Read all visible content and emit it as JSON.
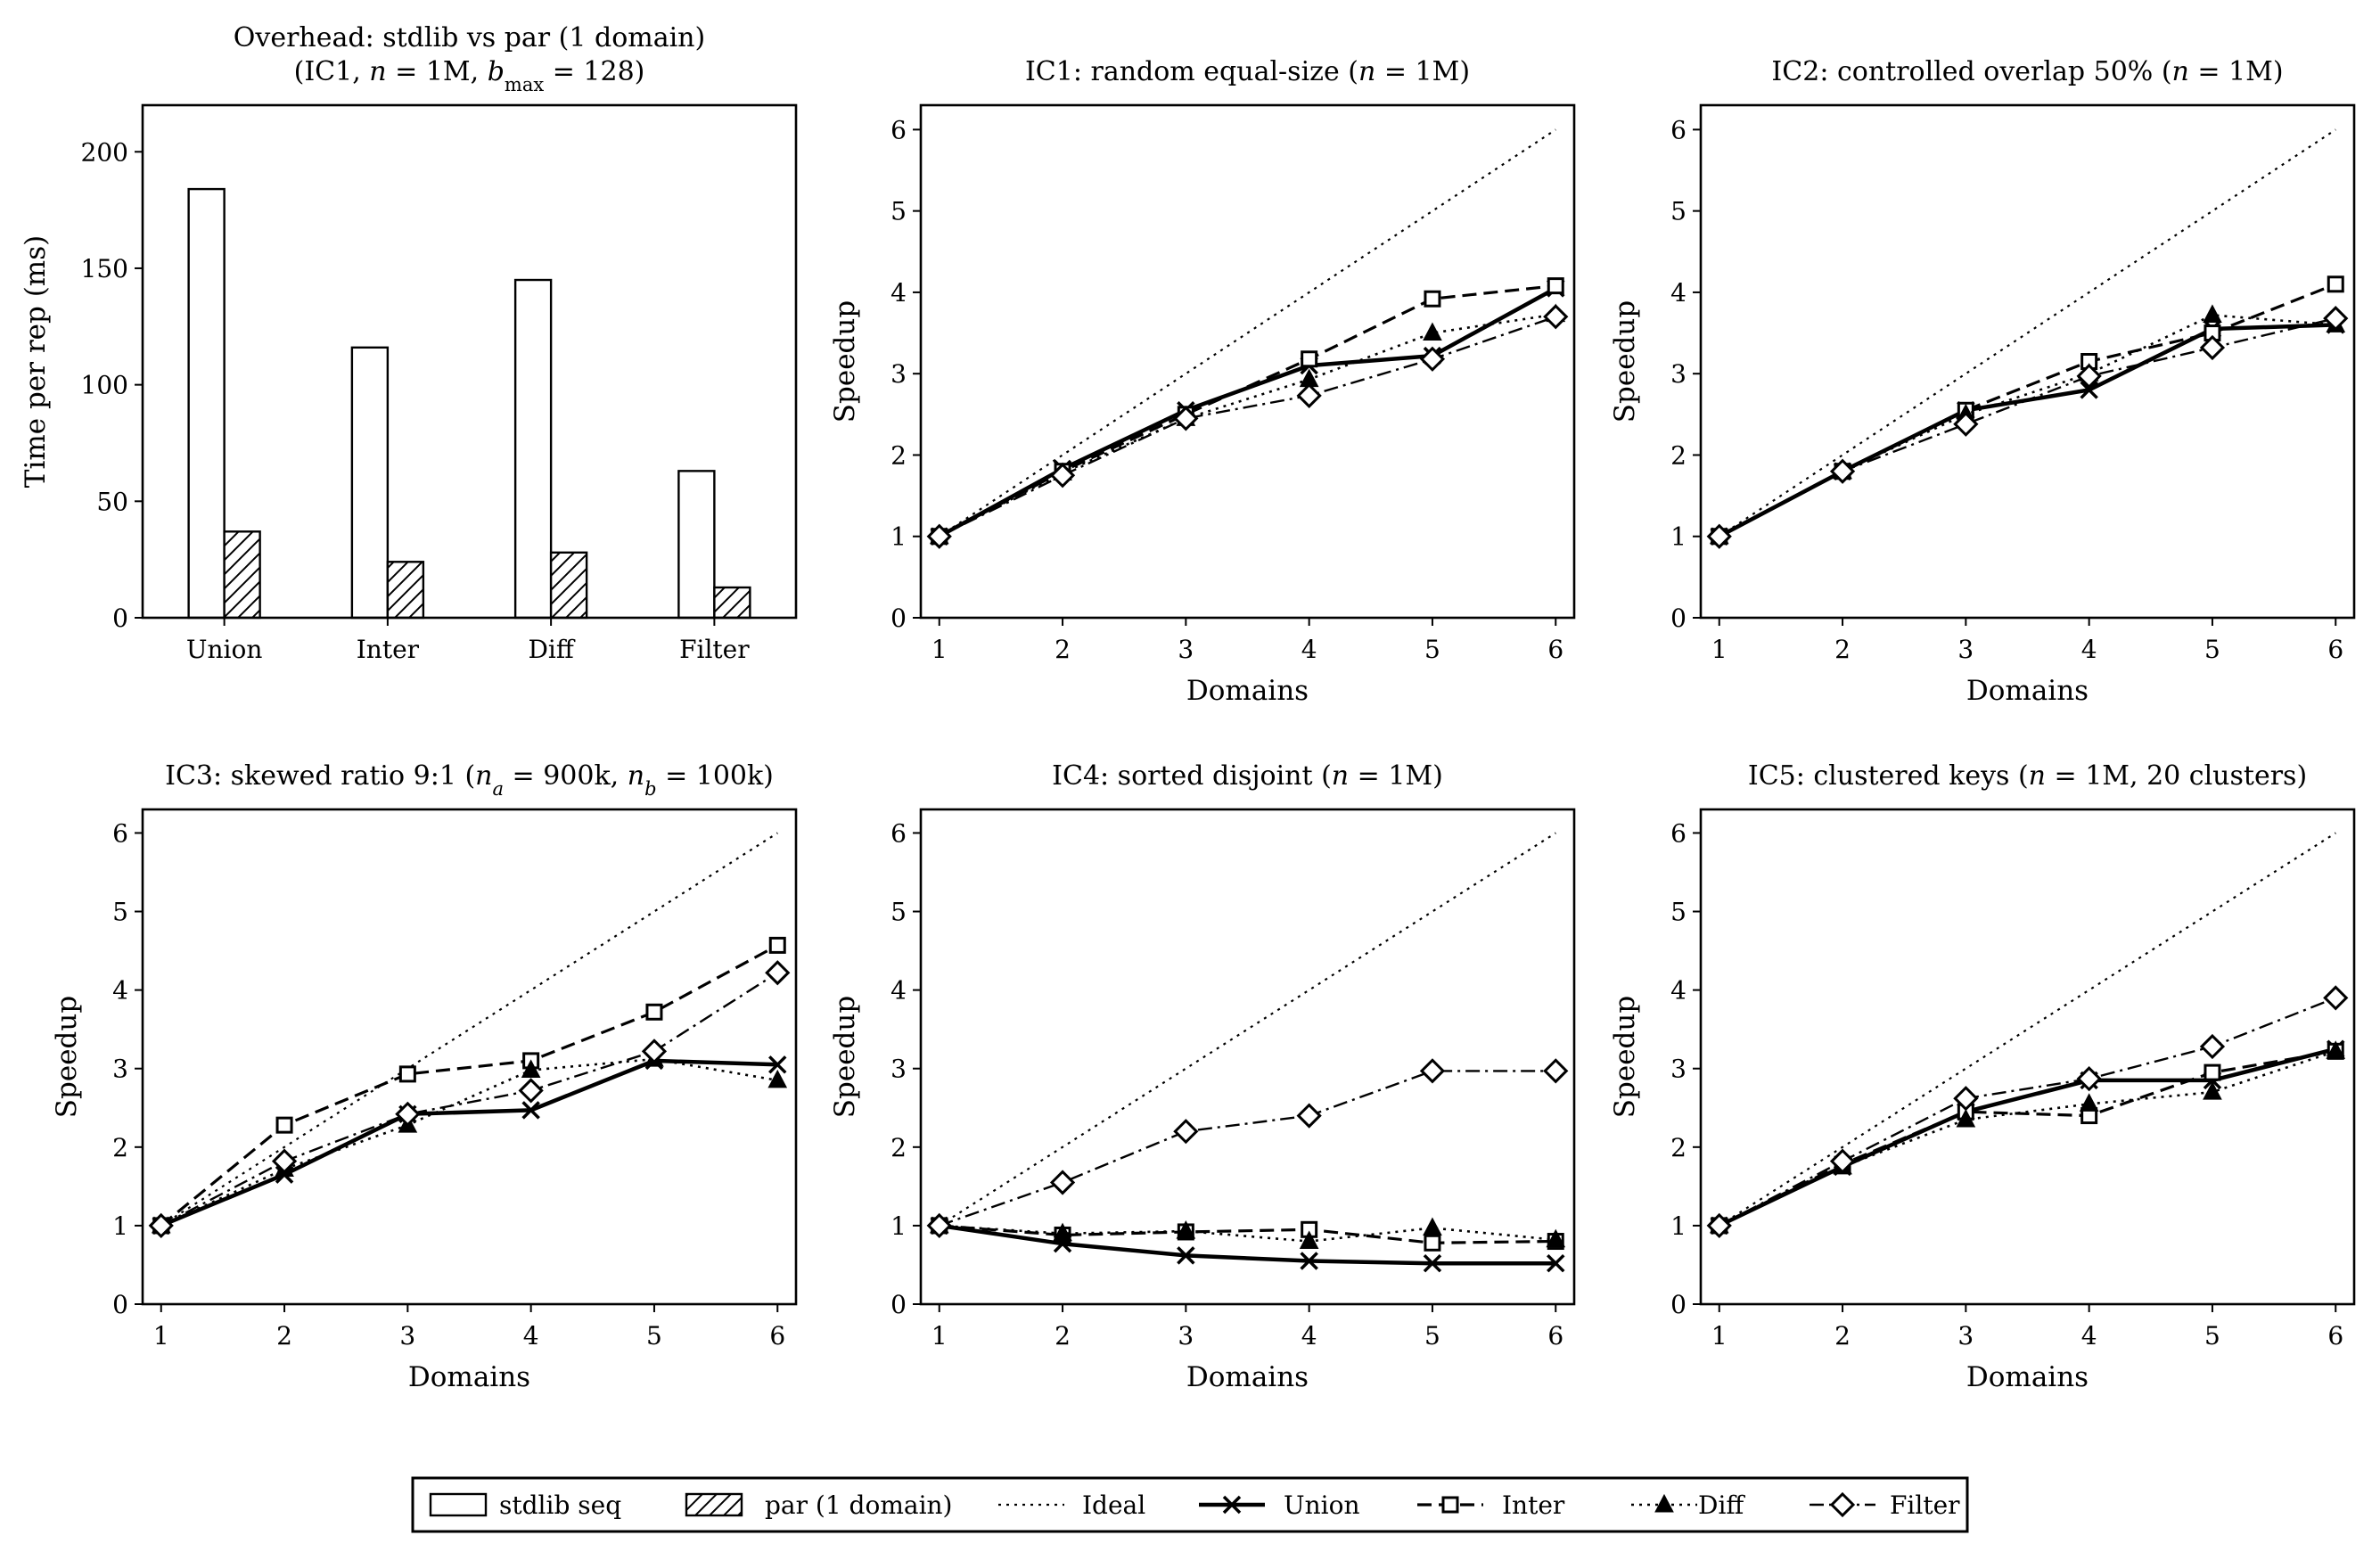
{
  "colors": {
    "ink": "#000000",
    "background": "#ffffff"
  },
  "legend": {
    "placement": "bottom-center",
    "items": [
      {
        "key": "stdlib",
        "label": "stdlib seq",
        "style": "bar-empty"
      },
      {
        "key": "par",
        "label": "par (1 domain)",
        "style": "bar-hatch"
      },
      {
        "key": "ideal",
        "label": "Ideal",
        "style": "dotted"
      },
      {
        "key": "union",
        "label": "Union",
        "style": "solid-x"
      },
      {
        "key": "inter",
        "label": "Inter",
        "style": "dashed-square"
      },
      {
        "key": "diff",
        "label": "Diff",
        "style": "dotted-triangle"
      },
      {
        "key": "filter",
        "label": "Filter",
        "style": "dashdot-diamond"
      }
    ]
  },
  "chart_data": [
    {
      "id": "overhead",
      "type": "bar",
      "title_line1": "Overhead: stdlib vs par (1 domain)",
      "title_line2_parts": [
        "(IC1, ",
        "n",
        " = 1M, ",
        "b",
        "max",
        " = 128)"
      ],
      "xlabel": "",
      "ylabel": "Time per rep (ms)",
      "categories": [
        "Union",
        "Inter",
        "Diff",
        "Filter"
      ],
      "ylim": [
        0,
        220
      ],
      "yticks": [
        0,
        50,
        100,
        150,
        200
      ],
      "series": [
        {
          "name": "stdlib seq",
          "key": "stdlib",
          "values": [
            184,
            116,
            145,
            63
          ]
        },
        {
          "name": "par (1 domain)",
          "key": "par",
          "values": [
            37,
            24,
            28,
            13
          ]
        }
      ]
    },
    {
      "id": "ic1",
      "type": "line",
      "title_parts": [
        "IC1: random equal-size (",
        "n",
        " = 1M)"
      ],
      "xlabel": "Domains",
      "ylabel": "Speedup",
      "x": [
        1,
        2,
        3,
        4,
        5,
        6
      ],
      "xlim": [
        0.85,
        6.15
      ],
      "ylim": [
        0,
        6.3
      ],
      "yticks": [
        0,
        1,
        2,
        3,
        4,
        5,
        6
      ],
      "series": [
        {
          "name": "Ideal",
          "key": "ideal",
          "values": [
            1,
            2,
            3,
            4,
            5,
            6
          ]
        },
        {
          "name": "Union",
          "key": "union",
          "values": [
            1.0,
            1.83,
            2.55,
            3.1,
            3.22,
            4.05
          ]
        },
        {
          "name": "Inter",
          "key": "inter",
          "values": [
            1.0,
            1.8,
            2.5,
            3.18,
            3.92,
            4.08
          ]
        },
        {
          "name": "Diff",
          "key": "diff",
          "values": [
            1.0,
            1.78,
            2.45,
            2.93,
            3.5,
            3.73
          ]
        },
        {
          "name": "Filter",
          "key": "filter",
          "values": [
            1.0,
            1.75,
            2.45,
            2.73,
            3.18,
            3.7
          ]
        }
      ]
    },
    {
      "id": "ic2",
      "type": "line",
      "title_parts": [
        "IC2: controlled overlap 50% (",
        "n",
        " = 1M)"
      ],
      "xlabel": "Domains",
      "ylabel": "Speedup",
      "x": [
        1,
        2,
        3,
        4,
        5,
        6
      ],
      "xlim": [
        0.85,
        6.15
      ],
      "ylim": [
        0,
        6.3
      ],
      "yticks": [
        0,
        1,
        2,
        3,
        4,
        5,
        6
      ],
      "series": [
        {
          "name": "Ideal",
          "key": "ideal",
          "values": [
            1,
            2,
            3,
            4,
            5,
            6
          ]
        },
        {
          "name": "Union",
          "key": "union",
          "values": [
            1.0,
            1.8,
            2.55,
            2.8,
            3.55,
            3.6
          ]
        },
        {
          "name": "Inter",
          "key": "inter",
          "values": [
            1.0,
            1.8,
            2.55,
            3.15,
            3.5,
            4.1
          ]
        },
        {
          "name": "Diff",
          "key": "diff",
          "values": [
            1.0,
            1.8,
            2.5,
            3.0,
            3.72,
            3.6
          ]
        },
        {
          "name": "Filter",
          "key": "filter",
          "values": [
            1.0,
            1.8,
            2.38,
            2.97,
            3.32,
            3.68
          ]
        }
      ]
    },
    {
      "id": "ic3",
      "type": "line",
      "title_parts": [
        "IC3: skewed ratio 9:1 (",
        "n",
        "a",
        " = 900k, ",
        "n",
        "b",
        " = 100k)"
      ],
      "xlabel": "Domains",
      "ylabel": "Speedup",
      "x": [
        1,
        2,
        3,
        4,
        5,
        6
      ],
      "xlim": [
        0.85,
        6.15
      ],
      "ylim": [
        0,
        6.3
      ],
      "yticks": [
        0,
        1,
        2,
        3,
        4,
        5,
        6
      ],
      "series": [
        {
          "name": "Ideal",
          "key": "ideal",
          "values": [
            1,
            2,
            3,
            4,
            5,
            6
          ]
        },
        {
          "name": "Union",
          "key": "union",
          "values": [
            1.0,
            1.65,
            2.42,
            2.47,
            3.1,
            3.05
          ]
        },
        {
          "name": "Inter",
          "key": "inter",
          "values": [
            1.0,
            2.28,
            2.93,
            3.1,
            3.72,
            4.57
          ]
        },
        {
          "name": "Diff",
          "key": "diff",
          "values": [
            1.0,
            1.72,
            2.28,
            2.98,
            3.12,
            2.85
          ]
        },
        {
          "name": "Filter",
          "key": "filter",
          "values": [
            1.0,
            1.82,
            2.42,
            2.72,
            3.22,
            4.22
          ]
        }
      ]
    },
    {
      "id": "ic4",
      "type": "line",
      "title_parts": [
        "IC4: sorted disjoint (",
        "n",
        " = 1M)"
      ],
      "xlabel": "Domains",
      "ylabel": "Speedup",
      "x": [
        1,
        2,
        3,
        4,
        5,
        6
      ],
      "xlim": [
        0.85,
        6.15
      ],
      "ylim": [
        0,
        6.3
      ],
      "yticks": [
        0,
        1,
        2,
        3,
        4,
        5,
        6
      ],
      "series": [
        {
          "name": "Ideal",
          "key": "ideal",
          "values": [
            1,
            2,
            3,
            4,
            5,
            6
          ]
        },
        {
          "name": "Union",
          "key": "union",
          "values": [
            1.0,
            0.77,
            0.62,
            0.55,
            0.52,
            0.52
          ]
        },
        {
          "name": "Inter",
          "key": "inter",
          "values": [
            1.0,
            0.88,
            0.92,
            0.95,
            0.78,
            0.8
          ]
        },
        {
          "name": "Diff",
          "key": "diff",
          "values": [
            1.0,
            0.9,
            0.93,
            0.8,
            0.97,
            0.82
          ]
        },
        {
          "name": "Filter",
          "key": "filter",
          "values": [
            1.0,
            1.55,
            2.2,
            2.4,
            2.97,
            2.97
          ]
        }
      ]
    },
    {
      "id": "ic5",
      "type": "line",
      "title_parts": [
        "IC5: clustered keys (",
        "n",
        " = 1M, 20 clusters)"
      ],
      "xlabel": "Domains",
      "ylabel": "Speedup",
      "x": [
        1,
        2,
        3,
        4,
        5,
        6
      ],
      "xlim": [
        0.85,
        6.15
      ],
      "ylim": [
        0,
        6.3
      ],
      "yticks": [
        0,
        1,
        2,
        3,
        4,
        5,
        6
      ],
      "series": [
        {
          "name": "Ideal",
          "key": "ideal",
          "values": [
            1,
            2,
            3,
            4,
            5,
            6
          ]
        },
        {
          "name": "Union",
          "key": "union",
          "values": [
            1.0,
            1.75,
            2.45,
            2.85,
            2.85,
            3.25
          ]
        },
        {
          "name": "Inter",
          "key": "inter",
          "values": [
            1.0,
            1.78,
            2.45,
            2.4,
            2.95,
            3.22
          ]
        },
        {
          "name": "Diff",
          "key": "diff",
          "values": [
            1.0,
            1.75,
            2.35,
            2.55,
            2.7,
            3.22
          ]
        },
        {
          "name": "Filter",
          "key": "filter",
          "values": [
            1.0,
            1.82,
            2.62,
            2.87,
            3.28,
            3.9
          ]
        }
      ]
    }
  ]
}
